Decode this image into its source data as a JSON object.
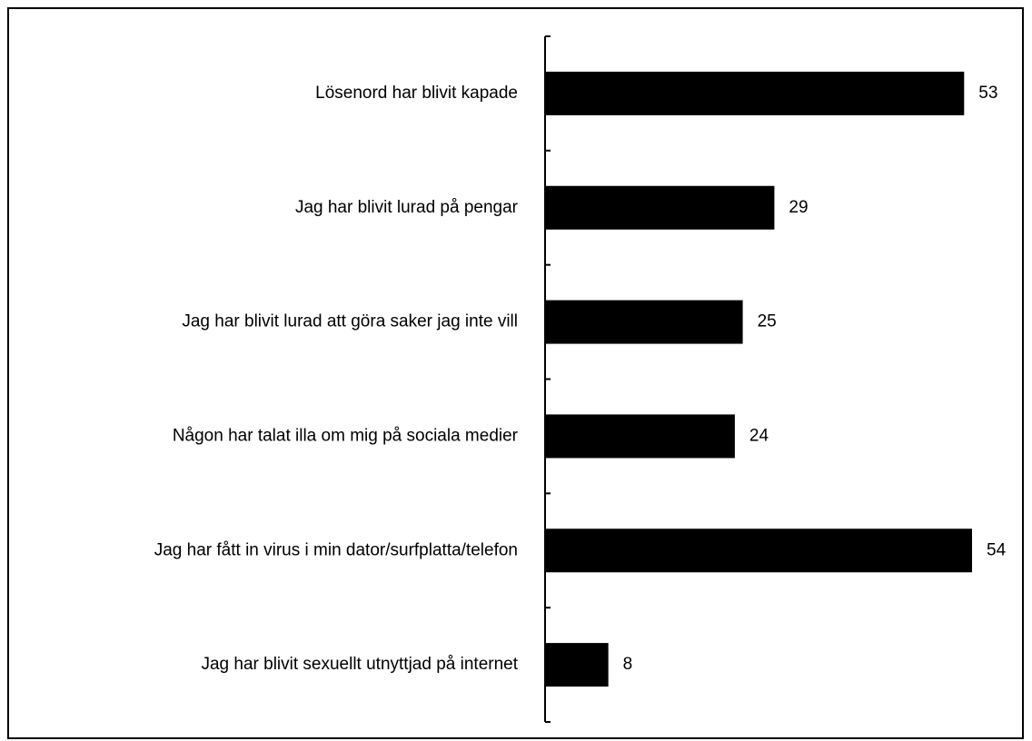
{
  "chart_data": {
    "type": "bar",
    "orientation": "horizontal",
    "categories": [
      "Lösenord har blivit kapade",
      "Jag har blivit lurad på pengar",
      "Jag har blivit lurad att göra saker jag inte vill",
      "Någon har talat illa om mig på sociala medier",
      "Jag har fått in virus i min dator/surfplatta/telefon",
      "Jag har blivit sexuellt utnyttjad på internet"
    ],
    "values": [
      53,
      29,
      25,
      24,
      54,
      8
    ],
    "title": "",
    "xlabel": "",
    "ylabel": "",
    "xlim": [
      0,
      54
    ],
    "grid": false,
    "legend": "none",
    "bar_color": "#000000",
    "data_labels": true
  }
}
